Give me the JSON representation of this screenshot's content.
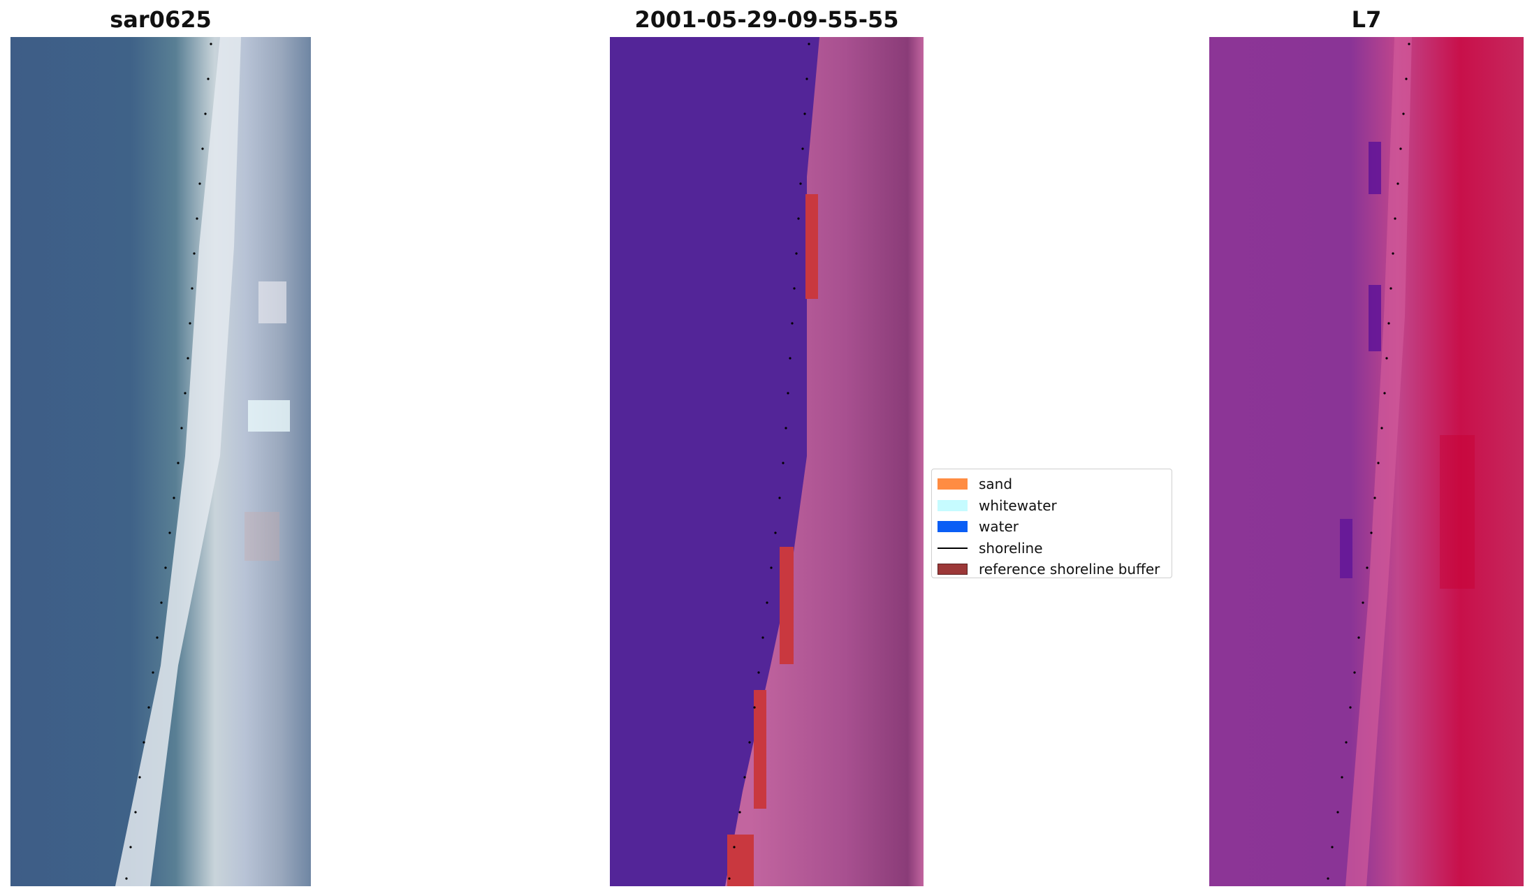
{
  "panels": {
    "rgb_title": "sar0625",
    "classified_title": "2001-05-29-09-55-55",
    "index_title": "L7"
  },
  "legend": {
    "items": [
      {
        "label": "sand",
        "kind": "patch",
        "color": "#ff8c42"
      },
      {
        "label": "whitewater",
        "kind": "patch",
        "color": "#c6fbff"
      },
      {
        "label": "water",
        "kind": "patch",
        "color": "#0a5ef5"
      },
      {
        "label": "shoreline",
        "kind": "line",
        "color": "#000000"
      },
      {
        "label": "reference shoreline buffer",
        "kind": "patch",
        "color": "#9c3838"
      }
    ]
  },
  "colors": {
    "deep_water": "#3f5f8a",
    "white_surf": "#e8eef2",
    "classified_water": "#532598",
    "classified_land": "#b35e9a",
    "buffer_red": "#c9383f",
    "index_low": "#8c3596",
    "index_high": "#c8104a",
    "shoreline": "#000000"
  }
}
